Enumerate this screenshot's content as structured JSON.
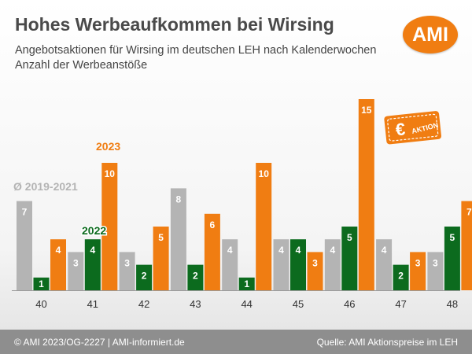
{
  "header": {
    "title": "Hohes Werbeaufkommen bei Wirsing",
    "subtitle_line1": "Angebotsaktionen für Wirsing im deutschen LEH nach Kalenderwochen",
    "subtitle_line2": "Anzahl der Werbeanstöße",
    "logo_text": "AMI"
  },
  "footer": {
    "left": "© AMI 2023/OG-2227 | AMI-informiert.de",
    "right": "Quelle: AMI Aktionspreise im LEH"
  },
  "badge": {
    "euro": "€",
    "text": "AKTION"
  },
  "colors": {
    "avg": "#b4b4b4",
    "y2022": "#0c6b1e",
    "y2023": "#f07d12",
    "accent": "#f07d12"
  },
  "chart_data": {
    "type": "bar",
    "categories": [
      "40",
      "41",
      "42",
      "43",
      "44",
      "45",
      "46",
      "47",
      "48"
    ],
    "series": [
      {
        "name": "Ø 2019-2021",
        "values": [
          7,
          3,
          3,
          8,
          4,
          4,
          4,
          4,
          3
        ]
      },
      {
        "name": "2022",
        "values": [
          1,
          4,
          2,
          2,
          1,
          4,
          5,
          2,
          5
        ]
      },
      {
        "name": "2023",
        "values": [
          4,
          10,
          5,
          6,
          10,
          3,
          15,
          3,
          7
        ]
      }
    ],
    "title": "Hohes Werbeaufkommen bei Wirsing",
    "xlabel": "",
    "ylabel": "",
    "ylim": [
      0,
      15
    ],
    "grid": false,
    "data_labels": true,
    "legend": "inline labels"
  }
}
